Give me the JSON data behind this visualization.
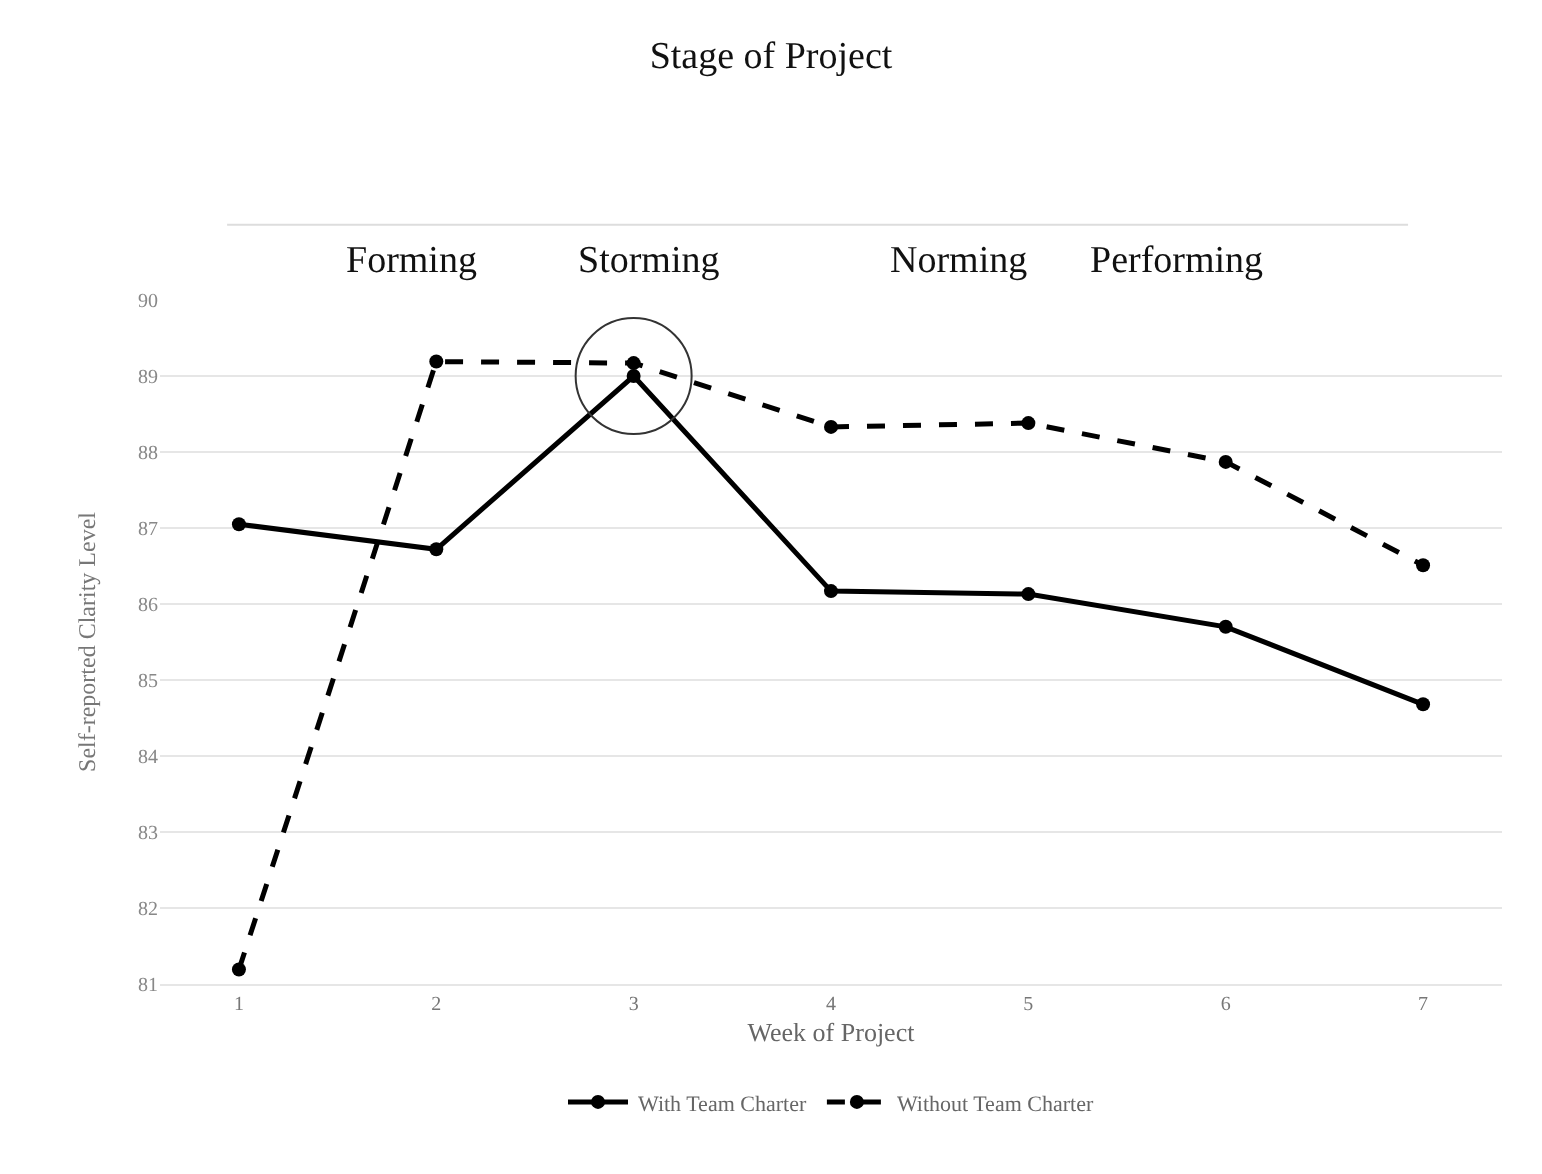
{
  "chart_data": {
    "type": "line",
    "title": "Stage of Project",
    "annotations": [
      "Forming",
      "Storming",
      "Norming",
      "Performing"
    ],
    "xlabel": "Week of Project",
    "ylabel": "Self-reported Clarity Level",
    "x": [
      1,
      2,
      3,
      4,
      5,
      6,
      7
    ],
    "series": [
      {
        "name": "With Team Charter",
        "color": "#000000",
        "line_style": "solid",
        "values": [
          87.05,
          86.72,
          89.0,
          86.17,
          86.13,
          85.7,
          84.68
        ]
      },
      {
        "name": "Without Team Charter",
        "color": "#000000",
        "line_style": "dashed",
        "values": [
          81.19,
          89.19,
          89.17,
          88.33,
          88.38,
          87.87,
          86.51
        ]
      }
    ],
    "xlim": [
      0.6,
      7.4
    ],
    "xticks": [
      1,
      2,
      3,
      4,
      5,
      6,
      7
    ],
    "ylim": [
      81,
      90
    ],
    "yticks": [
      81,
      82,
      83,
      84,
      85,
      86,
      87,
      88,
      89,
      90
    ],
    "grid": "y",
    "legend": "bottom",
    "marker": "circle"
  }
}
